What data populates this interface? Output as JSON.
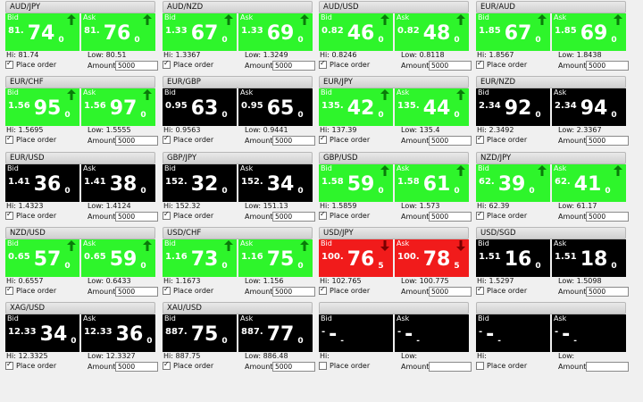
{
  "colors": {
    "up": "#2ef52b",
    "down": "#f11b1b",
    "neutral": "#000000"
  },
  "labels": {
    "bid": "Bid",
    "ask": "Ask",
    "hi": "Hi:",
    "low": "Low:",
    "place_order": "Place order",
    "amount": "Amount:"
  },
  "tiles": [
    {
      "pair": "AUD/JPY",
      "bid": {
        "pre": "81.",
        "main": "74",
        "pip": "0"
      },
      "ask": {
        "pre": "81.",
        "main": "76",
        "pip": "0"
      },
      "trend": "up",
      "hi": "81.74",
      "low": "80.51",
      "place_order": true,
      "amount": "5000"
    },
    {
      "pair": "AUD/NZD",
      "bid": {
        "pre": "1.33",
        "main": "67",
        "pip": "0"
      },
      "ask": {
        "pre": "1.33",
        "main": "69",
        "pip": "0"
      },
      "trend": "up",
      "hi": "1.3367",
      "low": "1.3249",
      "place_order": true,
      "amount": "5000"
    },
    {
      "pair": "AUD/USD",
      "bid": {
        "pre": "0.82",
        "main": "46",
        "pip": "0"
      },
      "ask": {
        "pre": "0.82",
        "main": "48",
        "pip": "0"
      },
      "trend": "up",
      "hi": "0.8246",
      "low": "0.8118",
      "place_order": true,
      "amount": "5000"
    },
    {
      "pair": "EUR/AUD",
      "bid": {
        "pre": "1.85",
        "main": "67",
        "pip": "0"
      },
      "ask": {
        "pre": "1.85",
        "main": "69",
        "pip": "0"
      },
      "trend": "up",
      "hi": "1.8567",
      "low": "1.8438",
      "place_order": true,
      "amount": "5000"
    },
    {
      "pair": "EUR/CHF",
      "bid": {
        "pre": "1.56",
        "main": "95",
        "pip": "0"
      },
      "ask": {
        "pre": "1.56",
        "main": "97",
        "pip": "0"
      },
      "trend": "up",
      "hi": "1.5695",
      "low": "1.5555",
      "place_order": true,
      "amount": "5000"
    },
    {
      "pair": "EUR/GBP",
      "bid": {
        "pre": "0.95",
        "main": "63",
        "pip": "0"
      },
      "ask": {
        "pre": "0.95",
        "main": "65",
        "pip": "0"
      },
      "trend": "none",
      "hi": "0.9563",
      "low": "0.9441",
      "place_order": true,
      "amount": "5000"
    },
    {
      "pair": "EUR/JPY",
      "bid": {
        "pre": "135.",
        "main": "42",
        "pip": "0"
      },
      "ask": {
        "pre": "135.",
        "main": "44",
        "pip": "0"
      },
      "trend": "up",
      "hi": "137.39",
      "low": "135.4",
      "place_order": true,
      "amount": "5000"
    },
    {
      "pair": "EUR/NZD",
      "bid": {
        "pre": "2.34",
        "main": "92",
        "pip": "0"
      },
      "ask": {
        "pre": "2.34",
        "main": "94",
        "pip": "0"
      },
      "trend": "none",
      "hi": "2.3492",
      "low": "2.3367",
      "place_order": true,
      "amount": "5000"
    },
    {
      "pair": "EUR/USD",
      "bid": {
        "pre": "1.41",
        "main": "36",
        "pip": "0"
      },
      "ask": {
        "pre": "1.41",
        "main": "38",
        "pip": "0"
      },
      "trend": "none",
      "hi": "1.4323",
      "low": "1.4124",
      "place_order": true,
      "amount": "5000"
    },
    {
      "pair": "GBP/JPY",
      "bid": {
        "pre": "152.",
        "main": "32",
        "pip": "0"
      },
      "ask": {
        "pre": "152.",
        "main": "34",
        "pip": "0"
      },
      "trend": "none",
      "hi": "152.32",
      "low": "151.13",
      "place_order": true,
      "amount": "5000"
    },
    {
      "pair": "GBP/USD",
      "bid": {
        "pre": "1.58",
        "main": "59",
        "pip": "0"
      },
      "ask": {
        "pre": "1.58",
        "main": "61",
        "pip": "0"
      },
      "trend": "up",
      "hi": "1.5859",
      "low": "1.573",
      "place_order": true,
      "amount": "5000"
    },
    {
      "pair": "NZD/JPY",
      "bid": {
        "pre": "62.",
        "main": "39",
        "pip": "0"
      },
      "ask": {
        "pre": "62.",
        "main": "41",
        "pip": "0"
      },
      "trend": "up",
      "hi": "62.39",
      "low": "61.17",
      "place_order": true,
      "amount": "5000"
    },
    {
      "pair": "NZD/USD",
      "bid": {
        "pre": "0.65",
        "main": "57",
        "pip": "0"
      },
      "ask": {
        "pre": "0.65",
        "main": "59",
        "pip": "0"
      },
      "trend": "up",
      "hi": "0.6557",
      "low": "0.6433",
      "place_order": true,
      "amount": "5000"
    },
    {
      "pair": "USD/CHF",
      "bid": {
        "pre": "1.16",
        "main": "73",
        "pip": "0"
      },
      "ask": {
        "pre": "1.16",
        "main": "75",
        "pip": "0"
      },
      "trend": "up",
      "hi": "1.1673",
      "low": "1.156",
      "place_order": true,
      "amount": "5000"
    },
    {
      "pair": "USD/JPY",
      "bid": {
        "pre": "100.",
        "main": "76",
        "pip": "5"
      },
      "ask": {
        "pre": "100.",
        "main": "78",
        "pip": "5"
      },
      "trend": "down",
      "hi": "102.765",
      "low": "100.775",
      "place_order": true,
      "amount": "5000"
    },
    {
      "pair": "USD/SGD",
      "bid": {
        "pre": "1.51",
        "main": "16",
        "pip": "0"
      },
      "ask": {
        "pre": "1.51",
        "main": "18",
        "pip": "0"
      },
      "trend": "none",
      "hi": "1.5297",
      "low": "1.5098",
      "place_order": true,
      "amount": "5000"
    },
    {
      "pair": "XAG/USD",
      "bid": {
        "pre": "12.33",
        "main": "34",
        "pip": "0"
      },
      "ask": {
        "pre": "12.33",
        "main": "36",
        "pip": "0"
      },
      "trend": "none",
      "hi": "12.3325",
      "low": "12.3327",
      "place_order": true,
      "amount": "5000"
    },
    {
      "pair": "XAU/USD",
      "bid": {
        "pre": "887.",
        "main": "75",
        "pip": "0"
      },
      "ask": {
        "pre": "887.",
        "main": "77",
        "pip": "0"
      },
      "trend": "none",
      "hi": "887.75",
      "low": "886.48",
      "place_order": true,
      "amount": "5000"
    },
    {
      "pair": "",
      "bid": {
        "pre": "-",
        "main": "-",
        "pip": "-"
      },
      "ask": {
        "pre": "-",
        "main": "-",
        "pip": "-"
      },
      "trend": "none",
      "hi": "",
      "low": "",
      "place_order": false,
      "amount": ""
    },
    {
      "pair": "",
      "bid": {
        "pre": "-",
        "main": "-",
        "pip": "-"
      },
      "ask": {
        "pre": "-",
        "main": "-",
        "pip": "-"
      },
      "trend": "none",
      "hi": "",
      "low": "",
      "place_order": false,
      "amount": ""
    }
  ]
}
